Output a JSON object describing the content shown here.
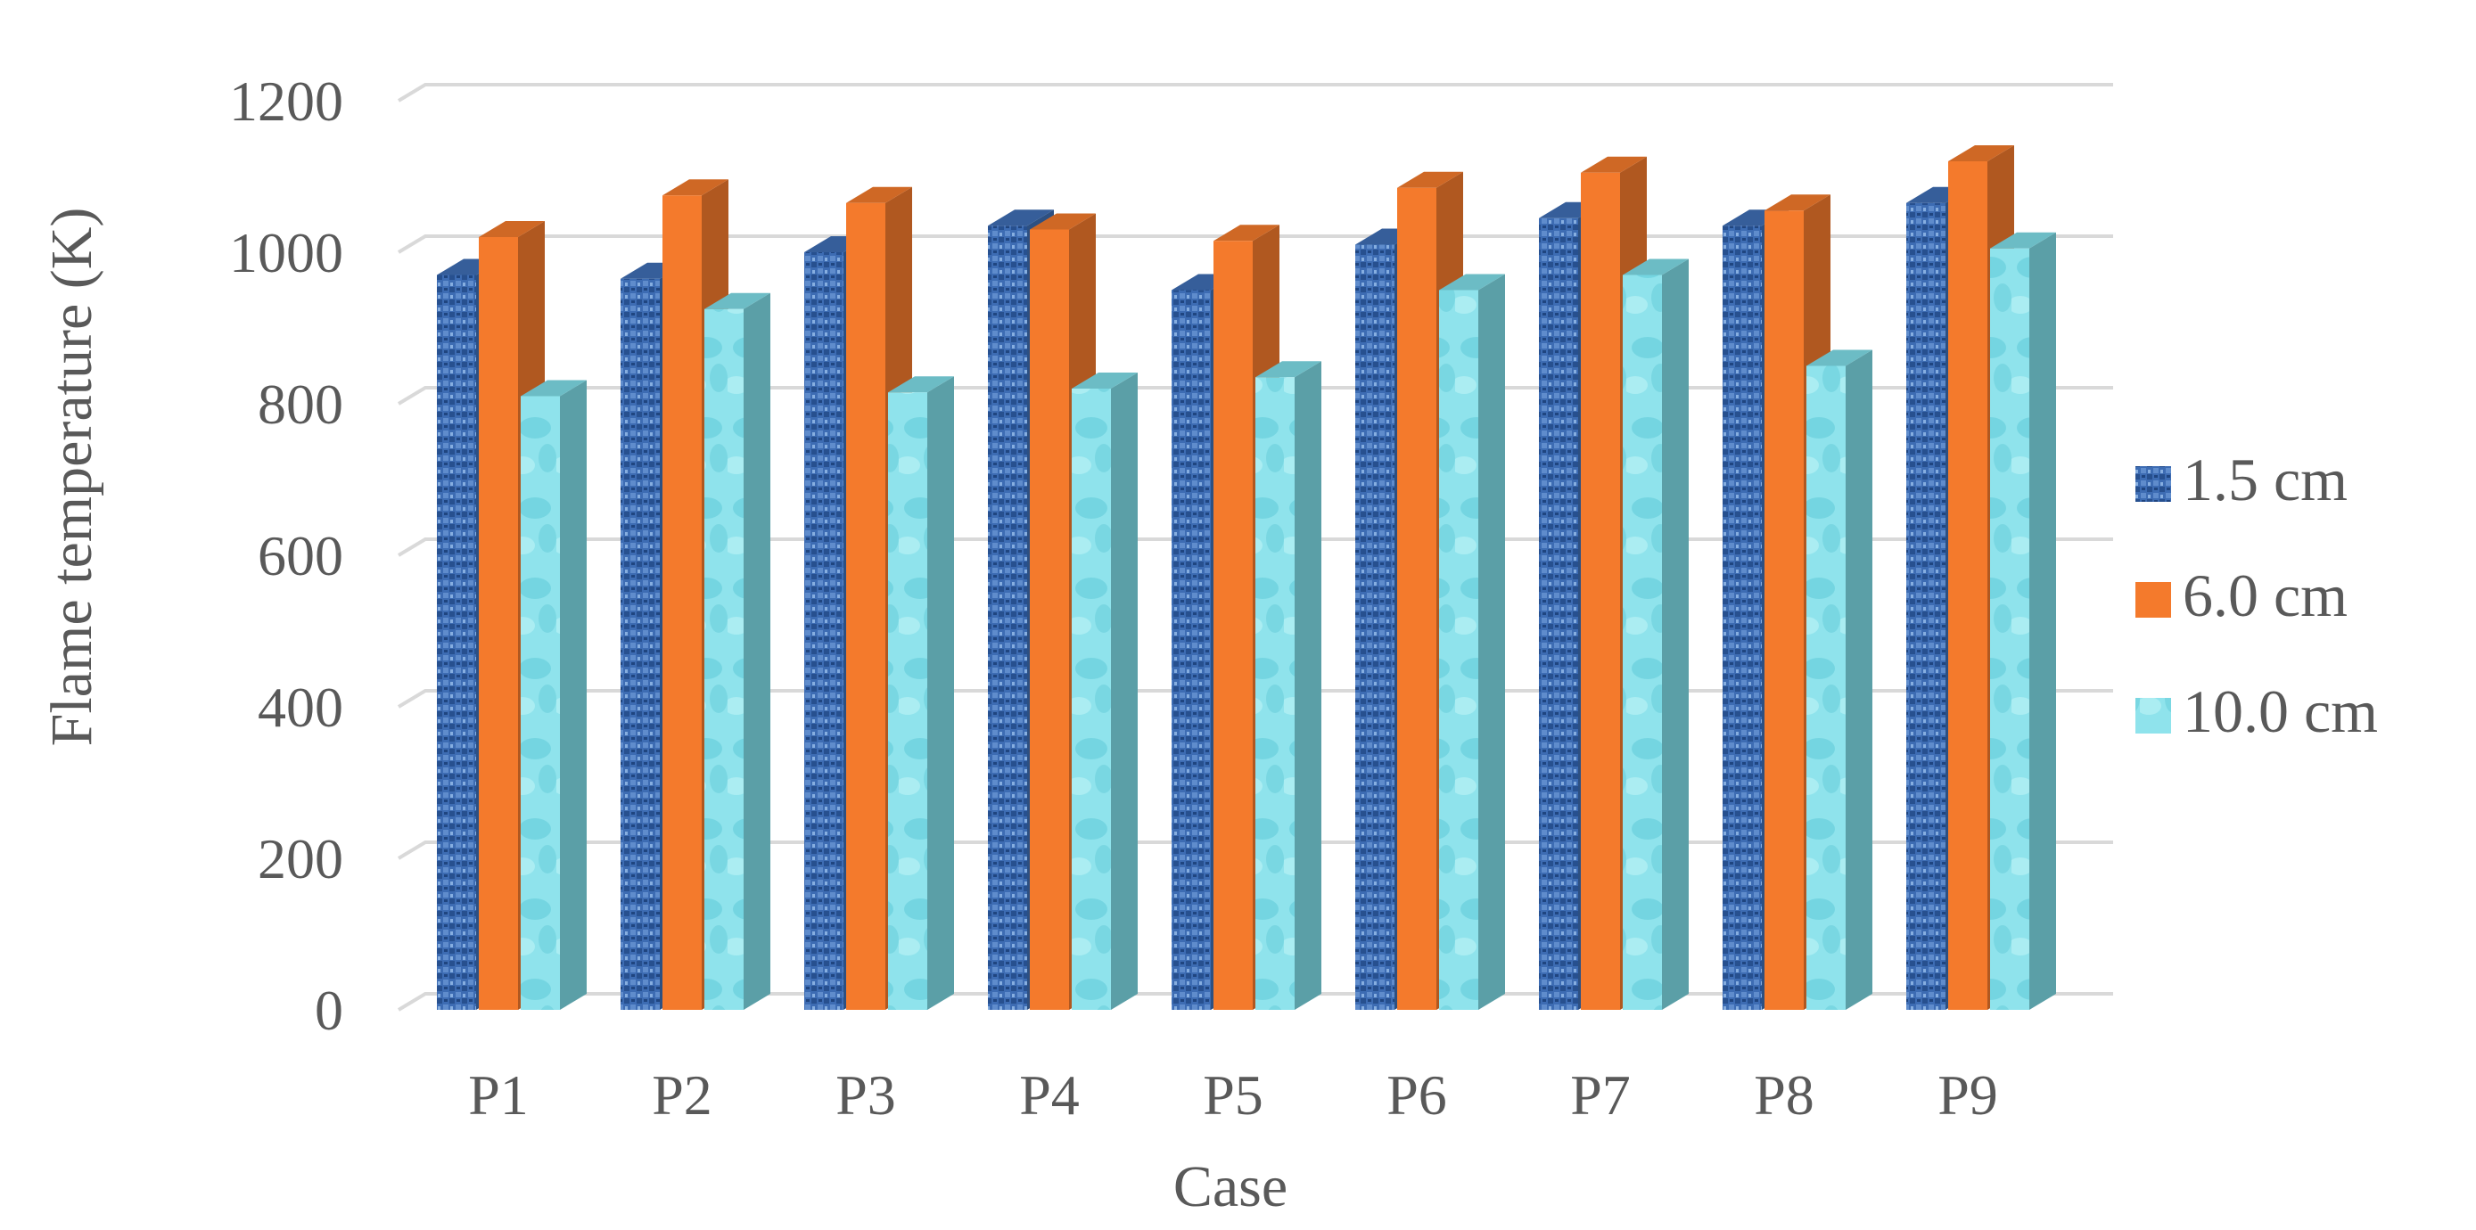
{
  "chart_data": {
    "type": "bar",
    "style": "3d-clustered-column",
    "title": "",
    "xlabel": "Case",
    "ylabel": "Flame temperature (K)",
    "ylim": [
      0,
      1200
    ],
    "yticks": [
      0,
      200,
      400,
      600,
      800,
      1000,
      1200
    ],
    "grid": true,
    "legend_position": "right",
    "categories": [
      "P1",
      "P2",
      "P3",
      "P4",
      "P5",
      "P6",
      "P7",
      "P8",
      "P9"
    ],
    "series": [
      {
        "name": "1.5 cm",
        "color": "#3f6fb5",
        "values": [
          970,
          965,
          1000,
          1035,
          950,
          1010,
          1045,
          1035,
          1065
        ]
      },
      {
        "name": "6.0 cm",
        "color": "#f47a2c",
        "values": [
          1020,
          1075,
          1065,
          1030,
          1015,
          1085,
          1105,
          1055,
          1120
        ]
      },
      {
        "name": "10.0 cm",
        "color": "#7fdde8",
        "values": [
          810,
          925,
          815,
          820,
          835,
          950,
          970,
          850,
          1005
        ]
      }
    ]
  }
}
